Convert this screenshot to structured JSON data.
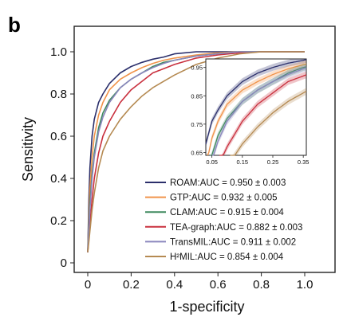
{
  "panel_label": "b",
  "chart_data": [
    {
      "type": "line",
      "panel": "main",
      "xlabel": "1-specificity",
      "ylabel": "Sensitivity",
      "xlim": [
        0,
        1
      ],
      "ylim": [
        0,
        1
      ],
      "xticks": [
        "0",
        "0.2",
        "0.4",
        "0.6",
        "0.8",
        "1.0"
      ],
      "yticks": [
        "0",
        "0.2",
        "0.4",
        "0.6",
        "0.8",
        "1.0"
      ],
      "legend_position": "bottom-right",
      "series": [
        {
          "name": "ROAM:AUC = 0.950 ± 0.003",
          "color": "#2b2f6b",
          "x": [
            0,
            0.005,
            0.01,
            0.02,
            0.03,
            0.05,
            0.07,
            0.1,
            0.15,
            0.2,
            0.25,
            0.3,
            0.35,
            0.4,
            0.5,
            0.6,
            0.7,
            0.8,
            0.9,
            1.0
          ],
          "y": [
            0.05,
            0.3,
            0.45,
            0.6,
            0.68,
            0.76,
            0.8,
            0.85,
            0.9,
            0.93,
            0.95,
            0.965,
            0.975,
            0.99,
            1.0,
            1.0,
            1.0,
            1.0,
            1.0,
            1.0
          ]
        },
        {
          "name": "GTP:AUC = 0.932 ± 0.005",
          "color": "#f0934a",
          "x": [
            0,
            0.005,
            0.01,
            0.02,
            0.03,
            0.05,
            0.07,
            0.1,
            0.15,
            0.2,
            0.25,
            0.3,
            0.35,
            0.4,
            0.5,
            0.6,
            0.7,
            0.8,
            0.9,
            1.0
          ],
          "y": [
            0.05,
            0.22,
            0.35,
            0.5,
            0.6,
            0.7,
            0.76,
            0.82,
            0.87,
            0.9,
            0.925,
            0.945,
            0.96,
            0.97,
            0.985,
            0.995,
            1.0,
            1.0,
            1.0,
            1.0
          ]
        },
        {
          "name": "CLAM:AUC = 0.915 ± 0.004",
          "color": "#3f8a5f",
          "x": [
            0,
            0.005,
            0.01,
            0.02,
            0.03,
            0.05,
            0.07,
            0.1,
            0.15,
            0.2,
            0.25,
            0.3,
            0.35,
            0.4,
            0.5,
            0.6,
            0.7,
            0.8,
            0.9,
            1.0
          ],
          "y": [
            0.05,
            0.18,
            0.28,
            0.42,
            0.52,
            0.64,
            0.71,
            0.77,
            0.83,
            0.87,
            0.9,
            0.93,
            0.95,
            0.96,
            0.98,
            0.99,
            1.0,
            1.0,
            1.0,
            1.0
          ]
        },
        {
          "name": "TEA-graph:AUC = 0.882 ± 0.003",
          "color": "#c9303e",
          "x": [
            0,
            0.005,
            0.01,
            0.02,
            0.03,
            0.05,
            0.07,
            0.1,
            0.15,
            0.2,
            0.25,
            0.3,
            0.35,
            0.4,
            0.5,
            0.6,
            0.7,
            0.8,
            0.9,
            1.0
          ],
          "y": [
            0.05,
            0.12,
            0.18,
            0.3,
            0.4,
            0.52,
            0.6,
            0.67,
            0.76,
            0.82,
            0.86,
            0.9,
            0.92,
            0.94,
            0.97,
            0.985,
            0.995,
            1.0,
            1.0,
            1.0
          ]
        },
        {
          "name": "TransMIL:AUC = 0.911 ± 0.002",
          "color": "#8a86bd",
          "x": [
            0,
            0.005,
            0.01,
            0.02,
            0.03,
            0.05,
            0.07,
            0.1,
            0.15,
            0.2,
            0.25,
            0.3,
            0.35,
            0.4,
            0.5,
            0.6,
            0.7,
            0.8,
            0.9,
            1.0
          ],
          "y": [
            0.05,
            0.16,
            0.25,
            0.4,
            0.5,
            0.62,
            0.69,
            0.76,
            0.83,
            0.87,
            0.9,
            0.925,
            0.945,
            0.96,
            0.98,
            0.99,
            1.0,
            1.0,
            1.0,
            1.0
          ]
        },
        {
          "name": "H²MIL:AUC = 0.854 ± 0.004",
          "color": "#b58a52",
          "x": [
            0,
            0.005,
            0.01,
            0.02,
            0.03,
            0.05,
            0.07,
            0.1,
            0.15,
            0.2,
            0.25,
            0.3,
            0.35,
            0.4,
            0.5,
            0.6,
            0.7,
            0.8,
            0.9,
            1.0
          ],
          "y": [
            0.05,
            0.1,
            0.15,
            0.25,
            0.33,
            0.45,
            0.53,
            0.6,
            0.68,
            0.74,
            0.79,
            0.83,
            0.86,
            0.89,
            0.94,
            0.97,
            0.99,
            1.0,
            1.0,
            1.0
          ]
        }
      ]
    },
    {
      "type": "line",
      "panel": "inset",
      "xlim": [
        0.03,
        0.36
      ],
      "ylim": [
        0.64,
        0.98
      ],
      "xticks": [
        "0.05",
        "0.15",
        "0.25",
        "0.35"
      ],
      "yticks": [
        "0.65",
        "0.75",
        "0.85",
        "0.95"
      ],
      "shaded_band": true
    }
  ]
}
